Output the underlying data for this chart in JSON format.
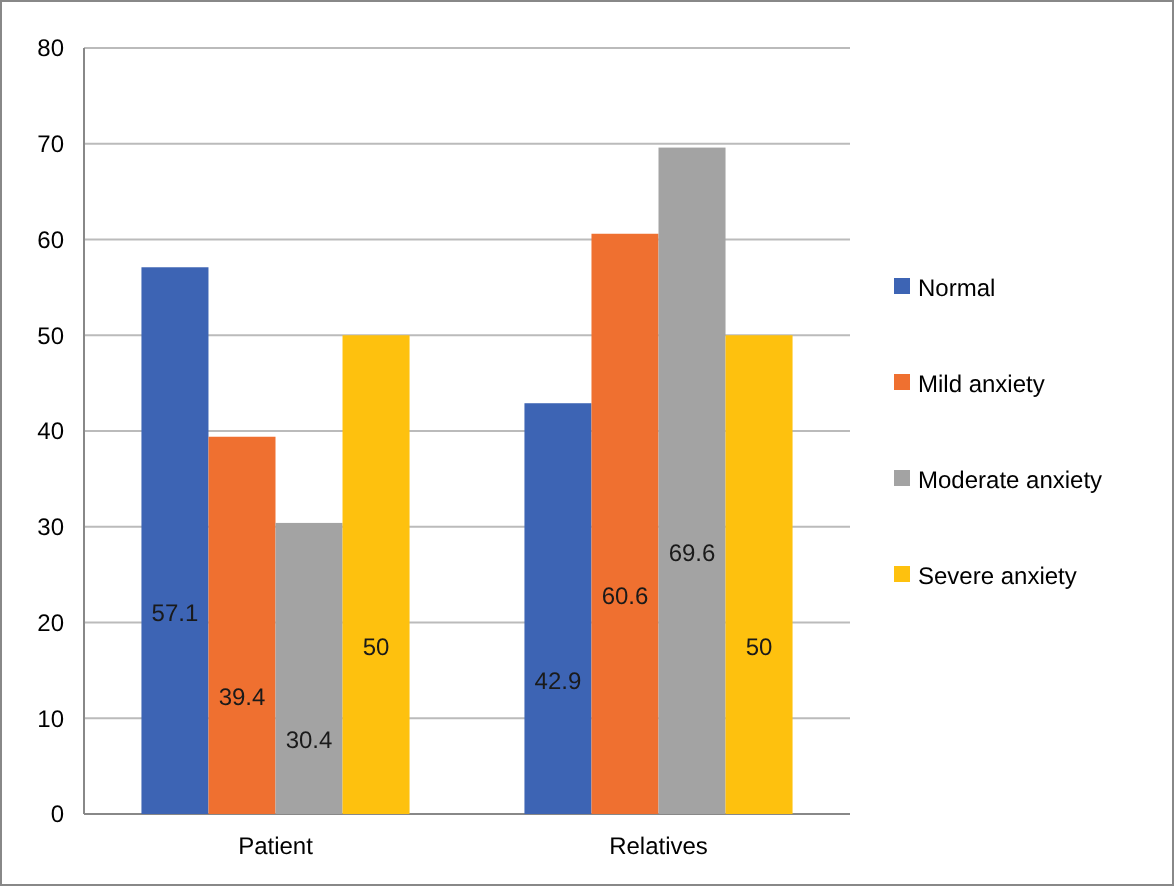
{
  "chart_data": {
    "type": "bar",
    "categories": [
      "Patient",
      "Relatives"
    ],
    "series": [
      {
        "name": "Normal",
        "color": "#3d64b4",
        "values": [
          57.1,
          42.9
        ]
      },
      {
        "name": "Mild anxiety",
        "color": "#ef7030",
        "values": [
          39.4,
          60.6
        ]
      },
      {
        "name": "Moderate anxiety",
        "color": "#a3a3a3",
        "values": [
          30.4,
          69.6
        ]
      },
      {
        "name": "Severe anxiety",
        "color": "#fec10e",
        "values": [
          50,
          50
        ]
      }
    ],
    "ylim": [
      0,
      80
    ],
    "yticks": [
      0,
      10,
      20,
      30,
      40,
      50,
      60,
      70,
      80
    ],
    "grid": "y",
    "legend": "right",
    "data_labels": true
  }
}
